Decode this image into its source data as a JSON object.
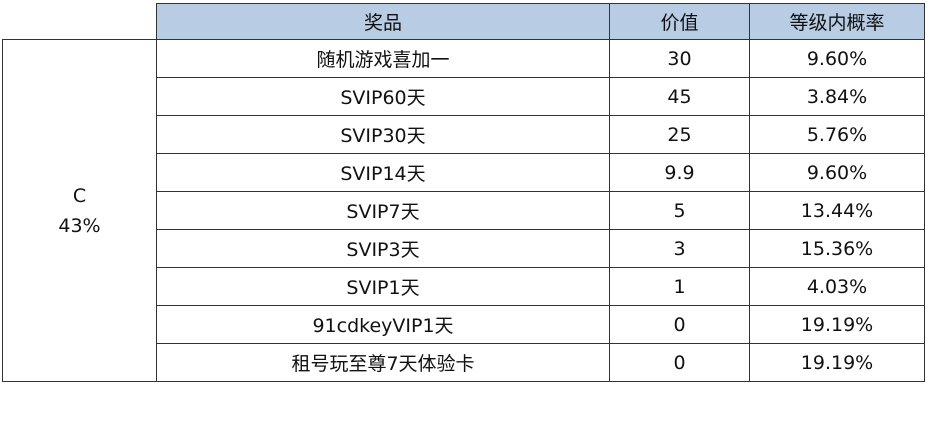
{
  "table": {
    "headers": [
      "",
      "奖品",
      "价值",
      "等级内概率"
    ],
    "tier": {
      "name": "C",
      "rate": "43%"
    },
    "rows": [
      {
        "prize": "随机游戏喜加一",
        "value": "30",
        "prob": "9.60%"
      },
      {
        "prize": "SVIP60天",
        "value": "45",
        "prob": "3.84%"
      },
      {
        "prize": "SVIP30天",
        "value": "25",
        "prob": "5.76%"
      },
      {
        "prize": "SVIP14天",
        "value": "9.9",
        "prob": "9.60%"
      },
      {
        "prize": "SVIP7天",
        "value": "5",
        "prob": "13.44%"
      },
      {
        "prize": "SVIP3天",
        "value": "3",
        "prob": "15.36%"
      },
      {
        "prize": "SVIP1天",
        "value": "1",
        "prob": "4.03%"
      },
      {
        "prize": "91cdkeyVIP1天",
        "value": "0",
        "prob": "19.19%"
      },
      {
        "prize": "租号玩至尊7天体验卡",
        "value": "0",
        "prob": "19.19%"
      }
    ]
  },
  "colors": {
    "header_bg": "#b8cce4",
    "border": "#333333"
  }
}
